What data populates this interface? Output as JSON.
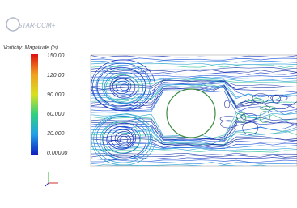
{
  "logo": "STAR-CCM+",
  "legend": {
    "title": "Vorticity: Magnitude (/s)",
    "labels": [
      "150.00",
      "120.00",
      "90.000",
      "60.000",
      "30.000",
      "0.00000"
    ]
  }
}
